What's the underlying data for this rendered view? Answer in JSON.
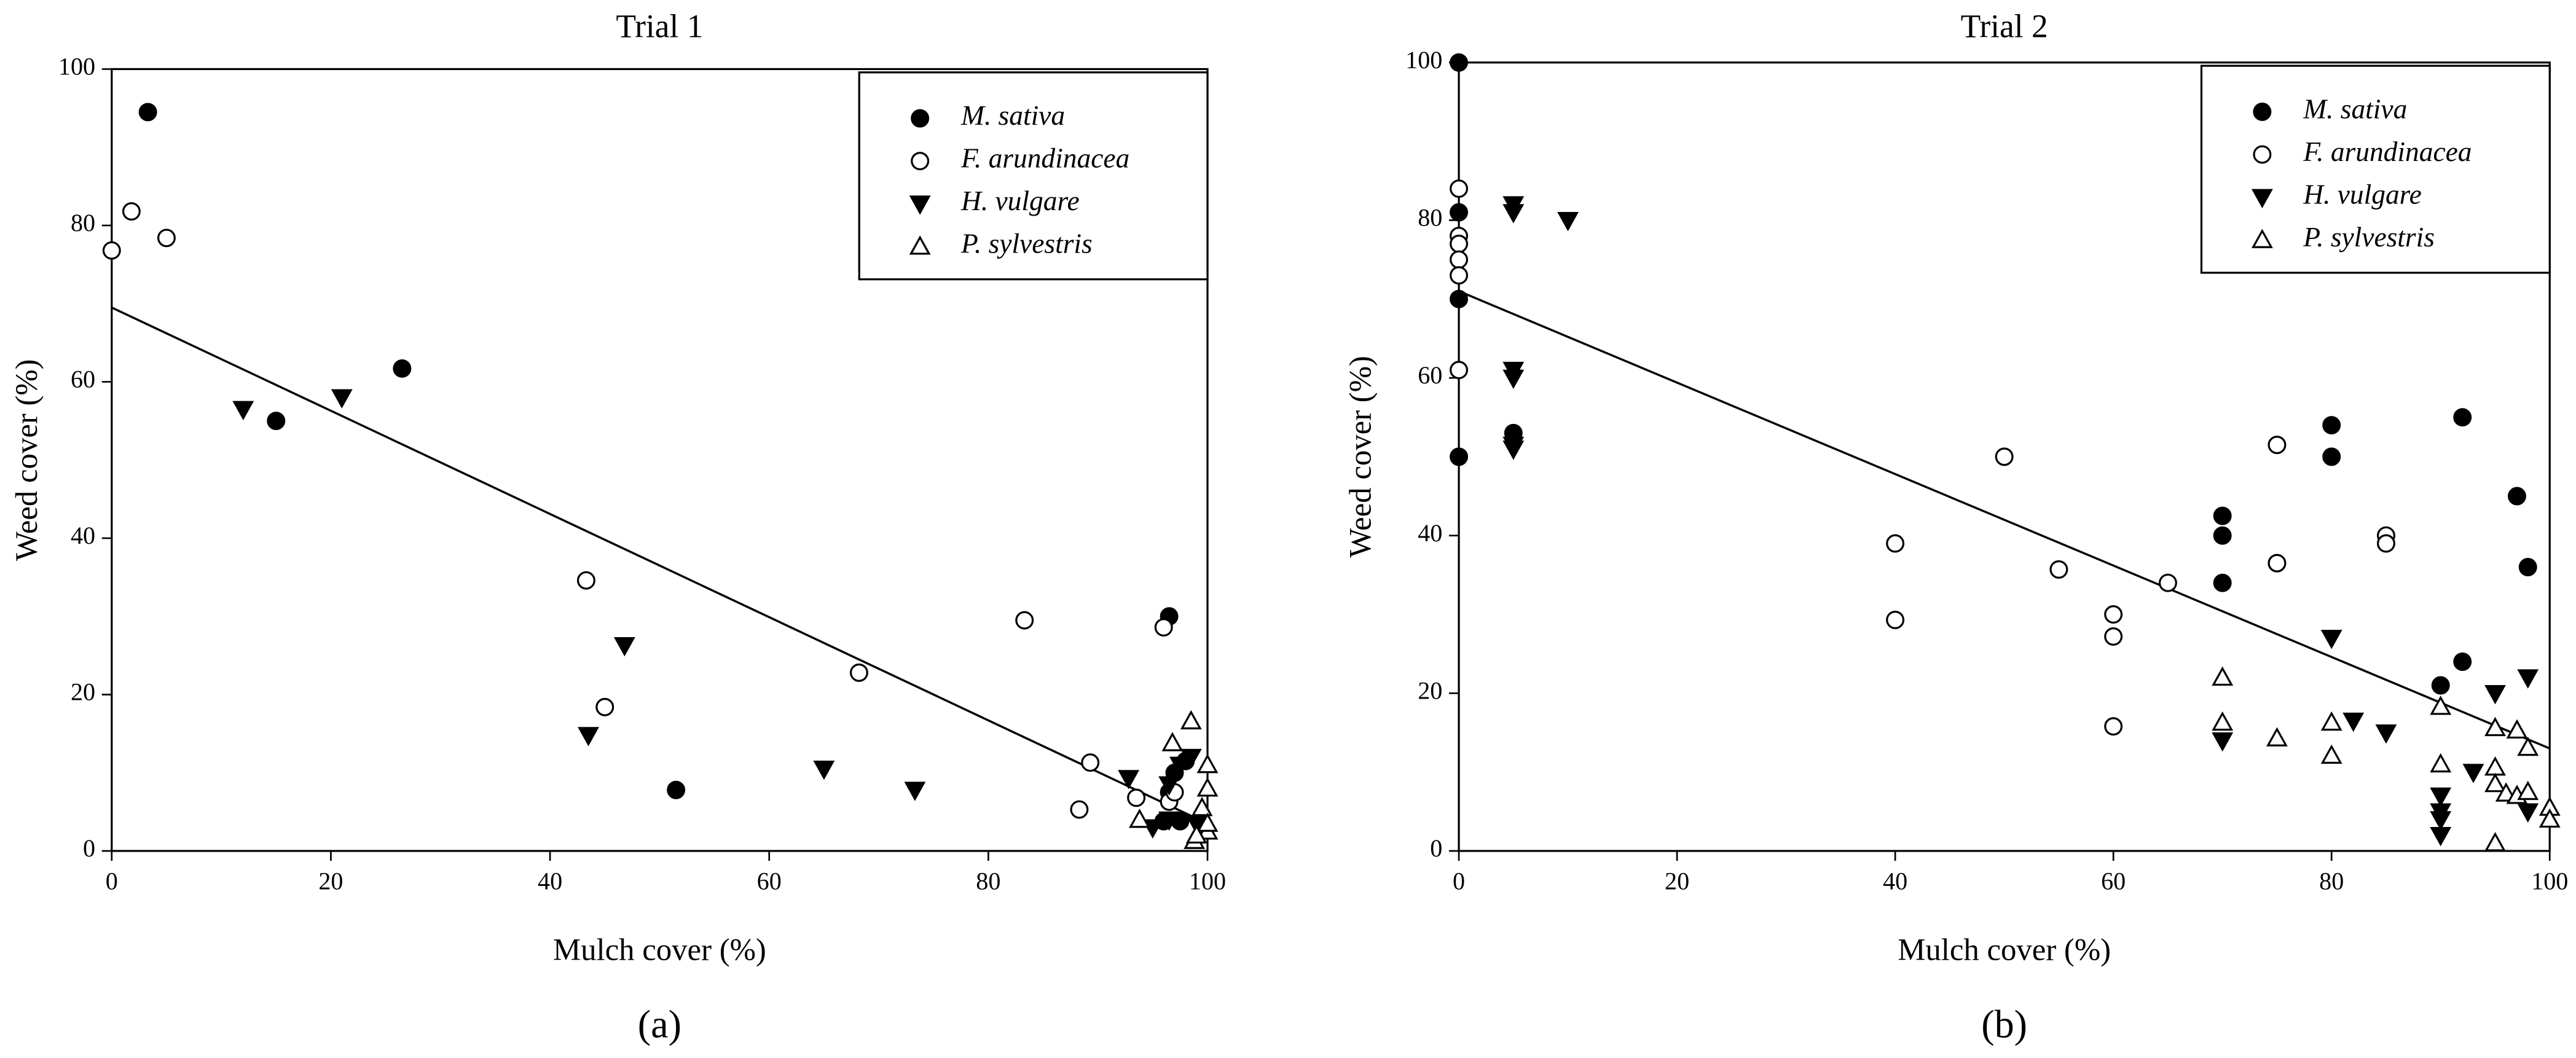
{
  "chart_data": [
    {
      "type": "scatter",
      "title": "Trial 1",
      "xlabel": "Mulch cover (%)",
      "ylabel": "Weed cover (%)",
      "panel_label": "(a)",
      "xlim": [
        0,
        100
      ],
      "ylim": [
        0,
        100
      ],
      "xticks": [
        0,
        20,
        40,
        60,
        80,
        100
      ],
      "yticks": [
        0,
        20,
        40,
        60,
        80,
        100
      ],
      "legend": "upper right",
      "series": [
        {
          "name": "M. sativa",
          "color": "#000000",
          "marker": "circle",
          "filled": true,
          "x": [
            3.3,
            15,
            26.5,
            51.5,
            96.5,
            96,
            97.5,
            97,
            98,
            96.5
          ],
          "y": [
            94.5,
            55,
            61.7,
            7.8,
            30,
            3.8,
            3.8,
            10,
            11.5,
            7.5
          ]
        },
        {
          "name": "F. arundinacea",
          "color": "#000000",
          "marker": "circle",
          "filled": false,
          "x": [
            0,
            1.8,
            5,
            43.3,
            45,
            68.2,
            83.3,
            88.3,
            89.3,
            93.5,
            96,
            96.5,
            97
          ],
          "y": [
            76.8,
            81.8,
            78.4,
            34.6,
            18.4,
            22.8,
            29.5,
            5.3,
            11.3,
            6.8,
            28.6,
            6.3,
            7.5
          ]
        },
        {
          "name": "H. vulgare",
          "color": "#000000",
          "marker": "triangle-down",
          "filled": true,
          "x": [
            12,
            21,
            43.5,
            46.8,
            65,
            73.3,
            92.8,
            95,
            96.5,
            97.5,
            98.5,
            99,
            96.5
          ],
          "y": [
            56.5,
            58,
            14.8,
            26.3,
            10.5,
            7.8,
            9.3,
            3,
            8.5,
            11,
            12,
            3.5,
            4
          ]
        },
        {
          "name": "P. sylvestris",
          "color": "#000000",
          "marker": "triangle-up",
          "filled": false,
          "x": [
            93.8,
            96.8,
            98.5,
            100,
            100,
            99.5,
            98.8,
            100,
            100,
            99
          ],
          "y": [
            4,
            13.8,
            16.6,
            11,
            8,
            5.5,
            1.3,
            2.5,
            3.5,
            2
          ]
        }
      ],
      "trend": {
        "x": [
          0,
          100
        ],
        "y": [
          69.5,
          3.5
        ]
      }
    },
    {
      "type": "scatter",
      "title": "Trial 2",
      "xlabel": "Mulch cover (%)",
      "ylabel": "Weed cover (%)",
      "panel_label": "(b)",
      "xlim": [
        0,
        100
      ],
      "ylim": [
        0,
        100
      ],
      "xticks": [
        0,
        20,
        40,
        60,
        80,
        100
      ],
      "yticks": [
        0,
        20,
        40,
        60,
        80,
        100
      ],
      "legend": "upper right",
      "series": [
        {
          "name": "M. sativa",
          "color": "#000000",
          "marker": "circle",
          "filled": true,
          "x": [
            0,
            0,
            0,
            0,
            5,
            70,
            70,
            70,
            75,
            80,
            80,
            90,
            92,
            92,
            97,
            98
          ],
          "y": [
            100,
            81,
            70,
            50,
            53,
            42.5,
            40,
            34,
            36.5,
            54,
            50,
            21,
            55,
            24,
            45,
            36
          ]
        },
        {
          "name": "F. arundinacea",
          "color": "#000000",
          "marker": "circle",
          "filled": false,
          "x": [
            0,
            0,
            0,
            0,
            0,
            0,
            40,
            40,
            50,
            55,
            60,
            60,
            60,
            65,
            75,
            75,
            85,
            85
          ],
          "y": [
            84,
            78,
            77,
            75,
            73,
            61,
            39,
            29.3,
            50,
            35.7,
            30,
            27.2,
            15.8,
            34,
            51.5,
            36.5,
            40,
            39
          ]
        },
        {
          "name": "H. vulgare",
          "color": "#000000",
          "marker": "triangle-down",
          "filled": true,
          "x": [
            5,
            5,
            5,
            5,
            5,
            5,
            10,
            70,
            80,
            82,
            85,
            90,
            90,
            90,
            90,
            93,
            95,
            98,
            98
          ],
          "y": [
            82,
            81,
            61,
            60,
            51.5,
            51,
            80,
            14,
            27,
            16.5,
            15,
            7,
            5,
            4,
            2,
            10,
            20,
            22,
            5
          ]
        },
        {
          "name": "P. sylvestris",
          "color": "#000000",
          "marker": "triangle-up",
          "filled": false,
          "x": [
            70,
            70,
            75,
            80,
            80,
            90,
            90,
            95,
            95,
            95,
            95,
            96,
            97,
            97,
            98,
            98,
            100,
            100
          ],
          "y": [
            22,
            16.3,
            14.3,
            16.3,
            12.1,
            18.3,
            11,
            15.6,
            10.6,
            8.5,
            1,
            7.3,
            15.3,
            7,
            13.1,
            7.5,
            5.5,
            4
          ]
        }
      ],
      "trend": {
        "x": [
          0,
          100
        ],
        "y": [
          71,
          13
        ]
      }
    }
  ]
}
